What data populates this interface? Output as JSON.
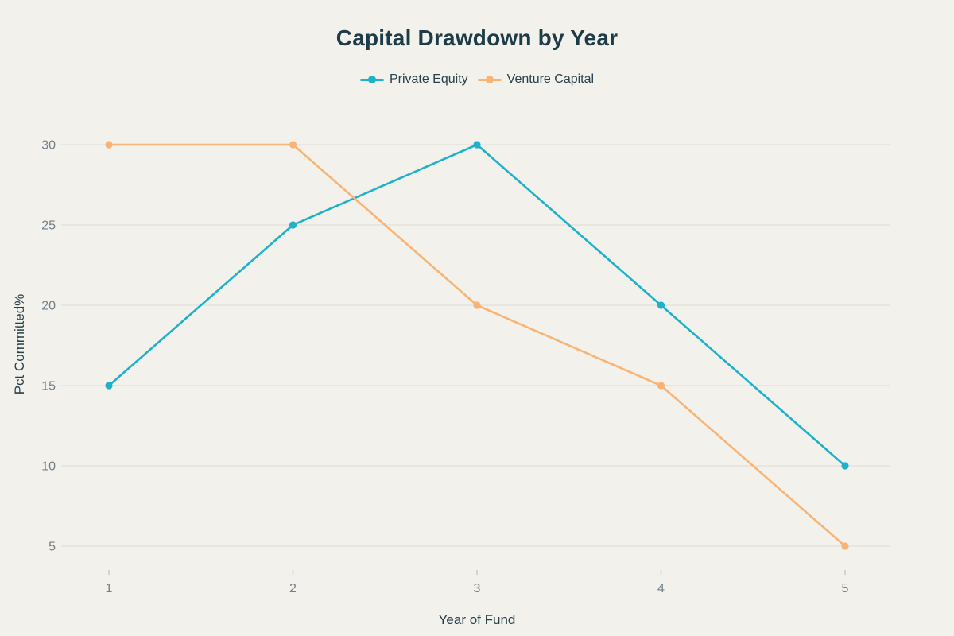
{
  "chart_data": {
    "type": "line",
    "title": "Capital Drawdown by Year",
    "xlabel": "Year of Fund",
    "ylabel": "Pct Committed%",
    "categories": [
      "1",
      "2",
      "3",
      "4",
      "5"
    ],
    "series": [
      {
        "name": "Private Equity",
        "color": "#1eb2c9",
        "values": [
          15,
          25,
          30,
          20,
          10
        ]
      },
      {
        "name": "Venture Capital",
        "color": "#f9b475",
        "values": [
          30,
          30,
          20,
          15,
          5
        ]
      }
    ],
    "y_ticks": [
      5,
      10,
      15,
      20,
      25,
      30
    ],
    "ylim": [
      5,
      30
    ],
    "grid": "horizontal-only",
    "legend_position": "top-center",
    "point_style": "filled-circle"
  },
  "colors": {
    "background": "#f2f1eb",
    "title_text": "#1d3c47",
    "legend_text": "#28414b",
    "axis_title_text": "#28414b",
    "tick_label_text": "#738089",
    "gridline": "#dcdcd5",
    "tick_mark": "#c9c9c2"
  }
}
